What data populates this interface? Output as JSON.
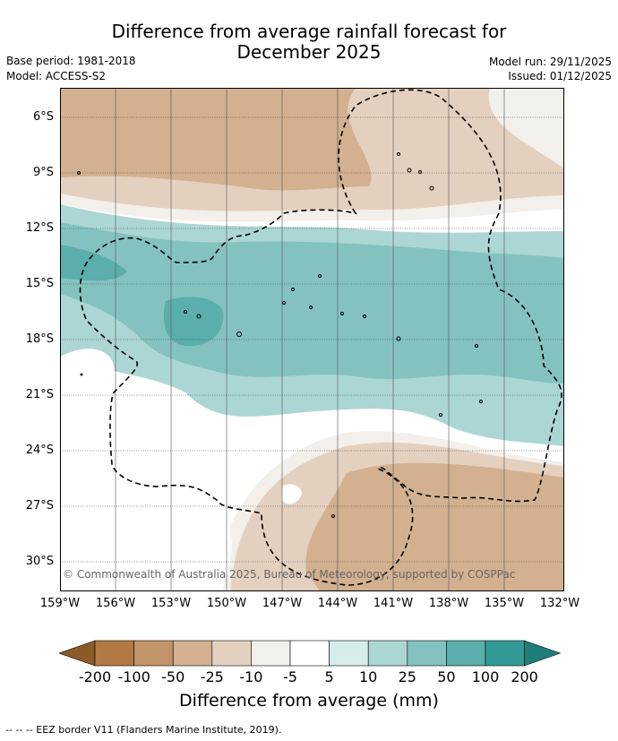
{
  "title_line1": "Difference from average rainfall forecast for",
  "title_line2": "December 2025",
  "base_period": "Base period: 1981-2018",
  "model": "Model: ACCESS-S2",
  "model_run": "Model run: 29/11/2025",
  "issued": "Issued: 01/12/2025",
  "copyright": "© Commonwealth of Australia 2025, Bureau of Meteorology, supported by COSPPac",
  "lat_labels": [
    "6°S",
    "9°S",
    "12°S",
    "15°S",
    "18°S",
    "21°S",
    "24°S",
    "27°S",
    "30°S"
  ],
  "lon_labels": [
    "159°W",
    "156°W",
    "153°W",
    "150°W",
    "147°W",
    "144°W",
    "141°W",
    "138°W",
    "135°W",
    "132°W"
  ],
  "colorbar": {
    "labels": [
      "-200",
      "-100",
      "-50",
      "-25",
      "-10",
      "-5",
      "5",
      "10",
      "25",
      "50",
      "100",
      "200"
    ],
    "colors": [
      "#8c5a26",
      "#b17a45",
      "#c29469",
      "#d2b090",
      "#e4d0bf",
      "#f3efea",
      "#ffffff",
      "#d6ecea",
      "#acd6d4",
      "#84c2c0",
      "#5aaeab",
      "#339b97",
      "#1f7d79"
    ],
    "title": "Difference from average (mm)"
  },
  "footer": "-- -- -- EEZ border V11 (Flanders Marine Institute, 2019)."
}
